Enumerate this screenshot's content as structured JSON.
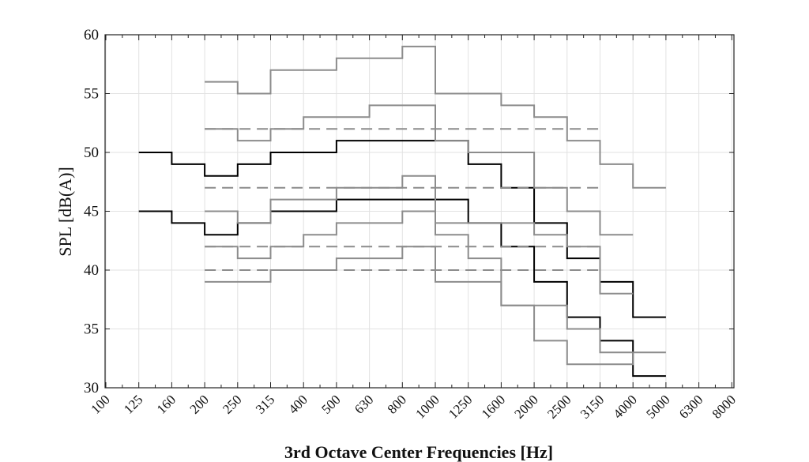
{
  "chart_data": {
    "type": "line",
    "title": "",
    "xlabel": "3rd Octave Center Frequencies [Hz]",
    "ylabel": "SPL [dB(A)]",
    "categories": [
      "100",
      "125",
      "160",
      "200",
      "250",
      "315",
      "400",
      "500",
      "630",
      "800",
      "1000",
      "1250",
      "1600",
      "2000",
      "2500",
      "3150",
      "4000",
      "5000",
      "6300",
      "8000"
    ],
    "ylim": [
      30,
      60
    ],
    "yticks": [
      30,
      35,
      40,
      45,
      50,
      55,
      60
    ],
    "grid": true,
    "legend": "none",
    "colors": {
      "black": "#000000",
      "gray": "#8c8c8c",
      "dashed": "#8c8c8c"
    },
    "series": [
      {
        "style": "black",
        "values": [
          null,
          50,
          49,
          48,
          49,
          50,
          50,
          51,
          51,
          51,
          51,
          49,
          47,
          44,
          41,
          39,
          36,
          null,
          null,
          null
        ]
      },
      {
        "style": "black",
        "values": [
          null,
          45,
          44,
          43,
          44,
          45,
          45,
          46,
          46,
          46,
          46,
          44,
          42,
          39,
          36,
          34,
          31,
          null,
          null,
          null
        ]
      },
      {
        "style": "gray",
        "values": [
          null,
          null,
          null,
          56,
          55,
          57,
          57,
          58,
          58,
          59,
          55,
          55,
          54,
          53,
          51,
          49,
          47,
          null,
          null,
          null
        ]
      },
      {
        "style": "gray",
        "values": [
          null,
          null,
          null,
          52,
          51,
          52,
          53,
          53,
          54,
          54,
          51,
          50,
          50,
          47,
          45,
          43,
          null,
          null,
          null,
          null
        ]
      },
      {
        "style": "gray",
        "values": [
          null,
          null,
          null,
          45,
          44,
          46,
          46,
          47,
          47,
          48,
          44,
          44,
          44,
          43,
          42,
          38,
          null,
          null,
          null,
          null
        ]
      },
      {
        "style": "gray",
        "values": [
          null,
          null,
          null,
          42,
          41,
          42,
          43,
          44,
          44,
          45,
          43,
          41,
          37,
          34,
          32,
          32,
          33,
          null,
          null,
          null
        ]
      },
      {
        "style": "gray",
        "values": [
          null,
          null,
          null,
          39,
          39,
          40,
          40,
          41,
          41,
          42,
          39,
          39,
          37,
          37,
          35,
          33,
          null,
          null,
          null,
          null
        ]
      },
      {
        "style": "dashed",
        "level": 52,
        "values": [
          null,
          null,
          null,
          52,
          52,
          52,
          52,
          52,
          52,
          52,
          52,
          52,
          52,
          52,
          52,
          null,
          null,
          null,
          null,
          null
        ]
      },
      {
        "style": "dashed",
        "level": 47,
        "values": [
          null,
          null,
          null,
          47,
          47,
          47,
          47,
          47,
          47,
          47,
          47,
          47,
          47,
          47,
          47,
          null,
          null,
          null,
          null,
          null
        ]
      },
      {
        "style": "dashed",
        "level": 42,
        "values": [
          null,
          null,
          null,
          42,
          42,
          42,
          42,
          42,
          42,
          42,
          42,
          42,
          42,
          42,
          42,
          null,
          null,
          null,
          null,
          null
        ]
      },
      {
        "style": "dashed",
        "level": 40,
        "values": [
          null,
          null,
          null,
          40,
          40,
          40,
          40,
          40,
          40,
          40,
          40,
          40,
          40,
          40,
          40,
          null,
          null,
          null,
          null,
          null
        ]
      }
    ]
  }
}
